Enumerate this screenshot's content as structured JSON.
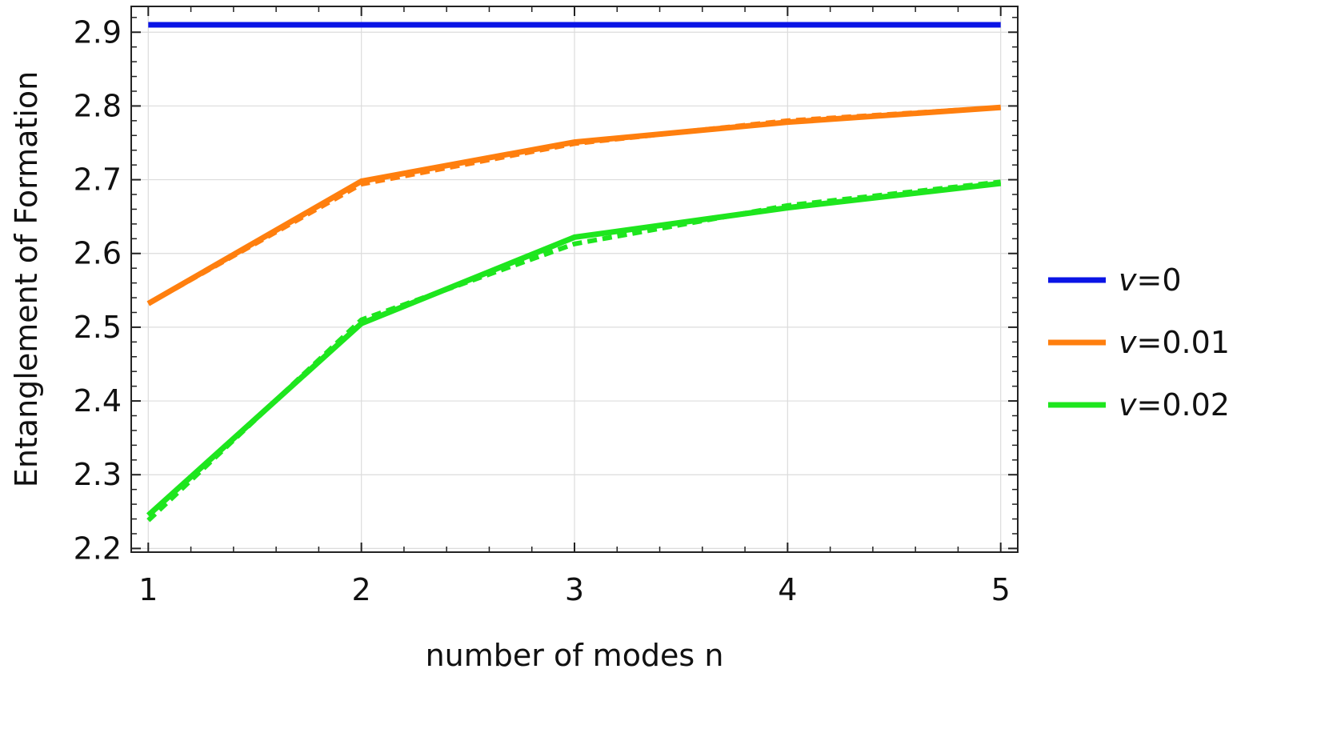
{
  "chart_data": {
    "type": "line",
    "title": "",
    "xlabel": "number of modes n",
    "ylabel": "Entanglement of Formation",
    "x": [
      1,
      2,
      3,
      4,
      5
    ],
    "xlim": [
      0.92,
      5.08
    ],
    "ylim": [
      2.195,
      2.935
    ],
    "xticks": [
      1,
      2,
      3,
      4,
      5
    ],
    "yticks": [
      2.2,
      2.3,
      2.4,
      2.5,
      2.6,
      2.7,
      2.8,
      2.9
    ],
    "ytick_labels": [
      "2.2",
      "2.3",
      "2.4",
      "2.5",
      "2.6",
      "2.7",
      "2.8",
      "2.9"
    ],
    "grid": true,
    "legend_position": "right",
    "series": [
      {
        "name": "v=0",
        "style": "solid",
        "color": "#0a14e6",
        "values": [
          2.91,
          2.91,
          2.91,
          2.91,
          2.91
        ]
      },
      {
        "name": "v=0.01",
        "style": "solid",
        "color": "#ff7f0e",
        "values": [
          2.532,
          2.698,
          2.751,
          2.778,
          2.798
        ]
      },
      {
        "name": "v=0.01",
        "style": "dashed",
        "color": "#ff7f0e",
        "values": [
          2.532,
          2.694,
          2.749,
          2.78,
          2.798
        ]
      },
      {
        "name": "v=0.02",
        "style": "solid",
        "color": "#1ee61e",
        "values": [
          2.245,
          2.505,
          2.622,
          2.662,
          2.695
        ]
      },
      {
        "name": "v=0.02",
        "style": "dashed",
        "color": "#1ee61e",
        "values": [
          2.238,
          2.51,
          2.613,
          2.665,
          2.697
        ]
      }
    ],
    "legend": [
      {
        "label": "=0",
        "symbol": "v",
        "color": "#0a14e6"
      },
      {
        "label": "=0.01",
        "symbol": "v",
        "color": "#ff7f0e"
      },
      {
        "label": "=0.02",
        "symbol": "v",
        "color": "#1ee61e"
      }
    ]
  }
}
